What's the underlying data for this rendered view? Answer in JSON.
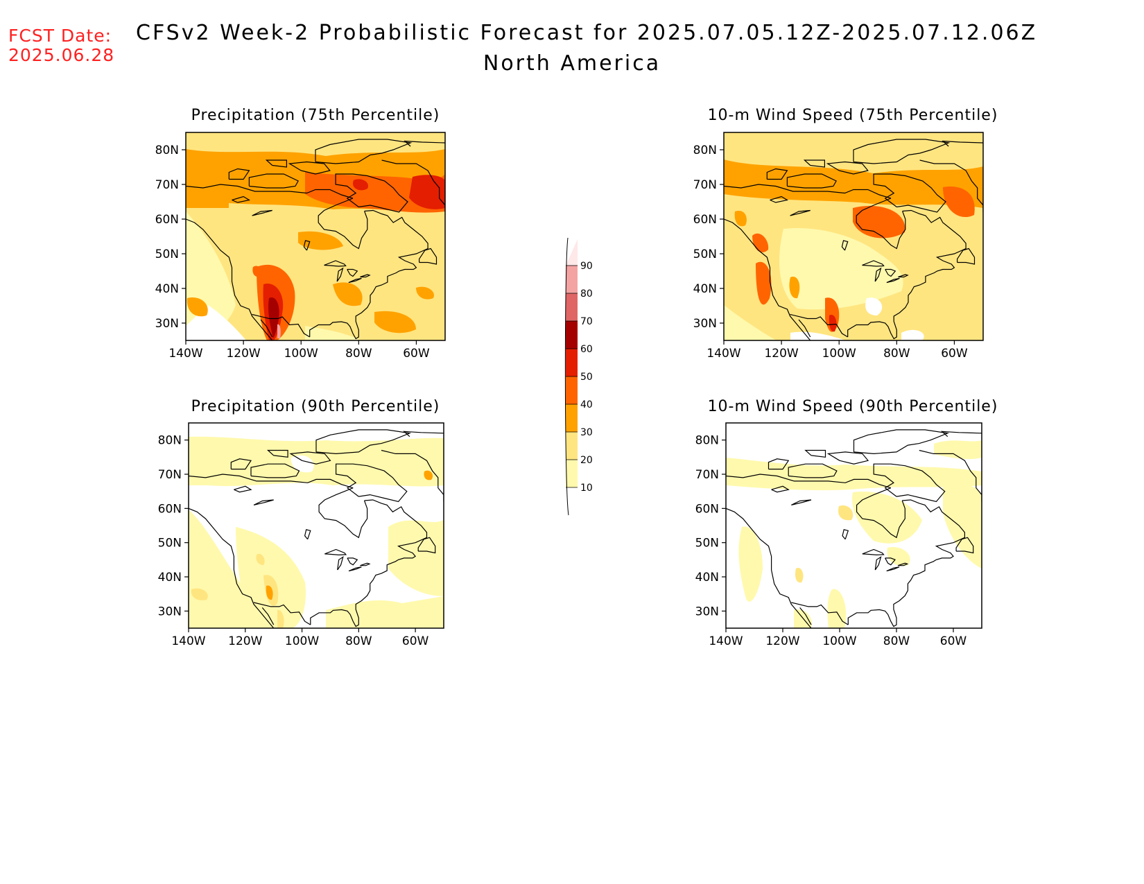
{
  "header": {
    "fcst_label": "FCST Date:",
    "fcst_date": "2025.06.28",
    "title": "CFSv2 Week-2 Probabilistic Forecast for 2025.07.05.12Z-2025.07.12.06Z",
    "region": "North America"
  },
  "panels": [
    {
      "title": "Precipitation (75th Percentile)"
    },
    {
      "title": "10-m Wind Speed (75th Percentile)"
    },
    {
      "title": "Precipitation (90th Percentile)"
    },
    {
      "title": "10-m Wind Speed (90th Percentile)"
    }
  ],
  "axes": {
    "lat_labels": [
      "80N",
      "70N",
      "60N",
      "50N",
      "40N",
      "30N"
    ],
    "lat_values": [
      80,
      70,
      60,
      50,
      40,
      30
    ],
    "lon_labels": [
      "140W",
      "120W",
      "100W",
      "80W",
      "60W"
    ],
    "lon_values": [
      -140,
      -120,
      -100,
      -80,
      -60
    ],
    "lat_range": [
      25,
      85
    ],
    "lon_range": [
      -140,
      -50
    ]
  },
  "colorbar": {
    "levels": [
      "10",
      "20",
      "30",
      "40",
      "50",
      "60",
      "70",
      "80",
      "90"
    ],
    "colors": [
      "#fff9ad",
      "#ffe580",
      "#ffa200",
      "#ff6400",
      "#e41e00",
      "#a50000",
      "#e06666",
      "#f4a3a3",
      "#ffe8e8"
    ]
  }
}
